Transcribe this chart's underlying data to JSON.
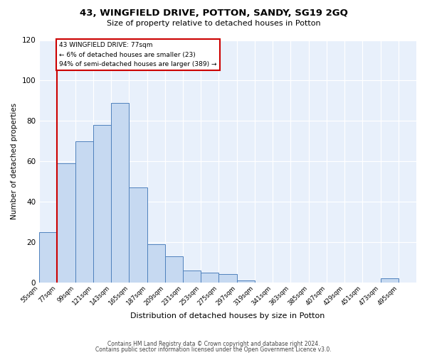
{
  "title": "43, WINGFIELD DRIVE, POTTON, SANDY, SG19 2GQ",
  "subtitle": "Size of property relative to detached houses in Potton",
  "xlabel": "Distribution of detached houses by size in Potton",
  "ylabel": "Number of detached properties",
  "bin_labels": [
    "55sqm",
    "77sqm",
    "99sqm",
    "121sqm",
    "143sqm",
    "165sqm",
    "187sqm",
    "209sqm",
    "231sqm",
    "253sqm",
    "275sqm",
    "297sqm",
    "319sqm",
    "341sqm",
    "363sqm",
    "385sqm",
    "407sqm",
    "429sqm",
    "451sqm",
    "473sqm",
    "495sqm"
  ],
  "bar_values": [
    25,
    59,
    70,
    78,
    89,
    47,
    19,
    13,
    6,
    5,
    4,
    1,
    0,
    0,
    0,
    0,
    0,
    0,
    0,
    2,
    0
  ],
  "bar_color": "#c6d9f1",
  "bar_edge_color": "#4f81bd",
  "ylim": [
    0,
    120
  ],
  "yticks": [
    0,
    20,
    40,
    60,
    80,
    100,
    120
  ],
  "property_bin_index": 1,
  "annotation_title": "43 WINGFIELD DRIVE: 77sqm",
  "annotation_line1": "← 6% of detached houses are smaller (23)",
  "annotation_line2": "94% of semi-detached houses are larger (389) →",
  "annotation_box_color": "#ffffff",
  "annotation_box_edge": "#cc0000",
  "red_line_color": "#cc0000",
  "footer1": "Contains HM Land Registry data © Crown copyright and database right 2024.",
  "footer2": "Contains public sector information licensed under the Open Government Licence v3.0.",
  "background_color": "#ffffff",
  "plot_background": "#e8f0fb"
}
